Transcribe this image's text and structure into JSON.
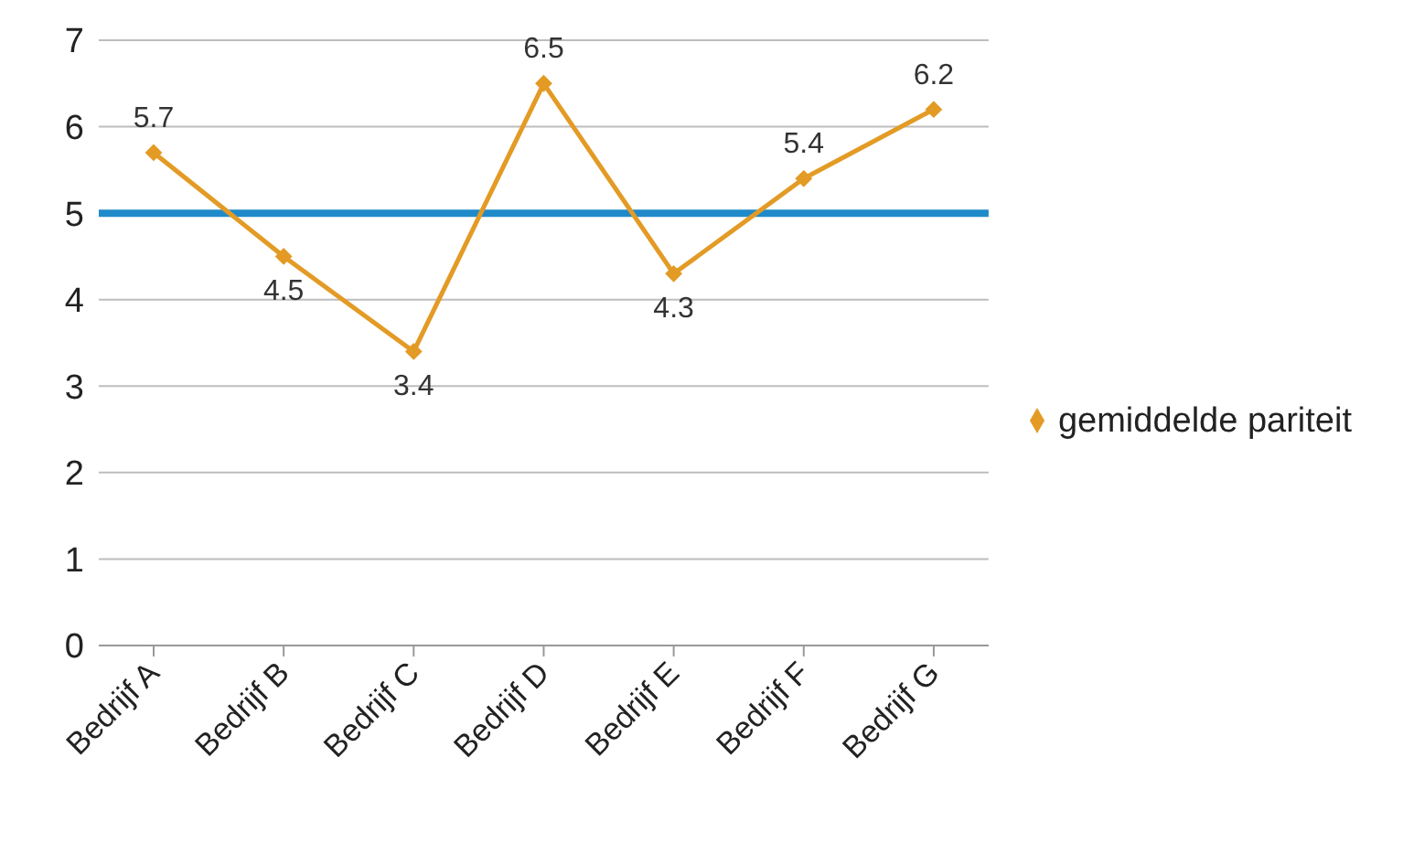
{
  "chart_data": {
    "type": "line",
    "categories": [
      "Bedrijf A",
      "Bedrijf B",
      "Bedrijf C",
      "Bedrijf D",
      "Bedrijf E",
      "Bedrijf F",
      "Bedrijf G"
    ],
    "series": [
      {
        "name": "gemiddelde pariteit",
        "color": "#e39b25",
        "values": [
          5.7,
          4.5,
          3.4,
          6.5,
          4.3,
          5.4,
          6.2
        ]
      }
    ],
    "ylim": [
      0,
      7
    ],
    "yticks": [
      0,
      1,
      2,
      3,
      4,
      5,
      6,
      7
    ],
    "grid": "y",
    "legend": "right",
    "marker": "diamond",
    "line_style": "solid",
    "data_labels": true,
    "ref_lines": [
      {
        "axis": "y",
        "value": 5,
        "color": "#1f8ac9"
      }
    ]
  }
}
